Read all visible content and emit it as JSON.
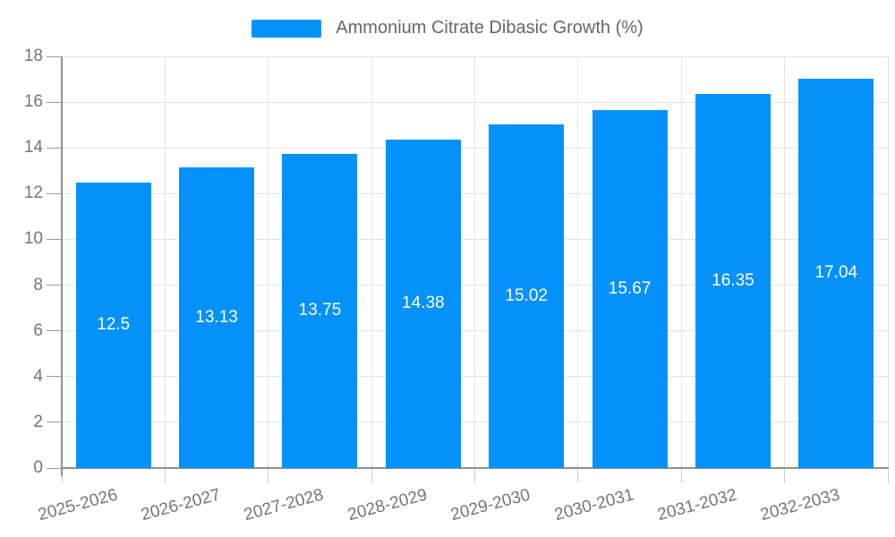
{
  "legend": {
    "label": "Ammonium Citrate Dibasic Growth (%)"
  },
  "chart_data": {
    "type": "bar",
    "title": "Ammonium Citrate Dibasic Growth (%)",
    "categories": [
      "2025-2026",
      "2026-2027",
      "2027-2028",
      "2028-2029",
      "2029-2030",
      "2030-2031",
      "2031-2032",
      "2032-2033"
    ],
    "values": [
      12.5,
      13.13,
      13.75,
      14.38,
      15.02,
      15.67,
      16.35,
      17.04
    ],
    "value_labels": [
      "12.5",
      "13.13",
      "13.75",
      "14.38",
      "15.02",
      "15.67",
      "16.35",
      "17.04"
    ],
    "series_name": "Ammonium Citrate Dibasic Growth (%)",
    "xlabel": "",
    "ylabel": "",
    "ylim": [
      0,
      18
    ],
    "ytick_step": 2,
    "ytick_labels": [
      "0",
      "2",
      "4",
      "6",
      "8",
      "10",
      "12",
      "14",
      "16",
      "18"
    ],
    "grid": true,
    "legend_position": "top-center",
    "xlabel_rotation_deg": -15,
    "colors": {
      "bar": "#0591fa",
      "grid": "#e3e3e3",
      "axis": "#909090",
      "tick": "#9a9a9a",
      "xtick": "#cccccc",
      "tick_text": "#757575",
      "legend_text": "#666666",
      "bar_label_text": "#ffffff",
      "background": "#ffffff"
    }
  }
}
